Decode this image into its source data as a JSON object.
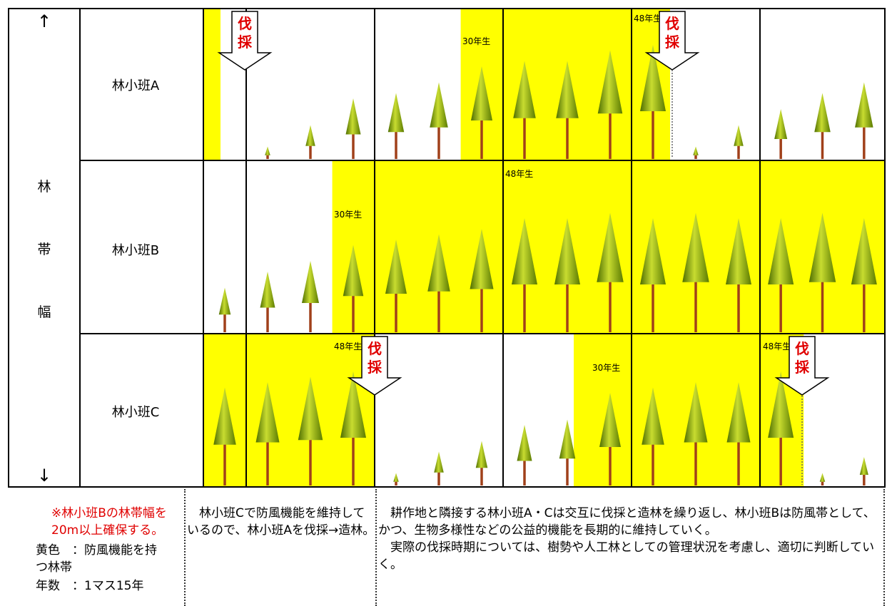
{
  "labels": {
    "arrow_up": "↑",
    "arrow_down": "↓",
    "vertical_axis": [
      "林",
      "帯",
      "幅"
    ],
    "rows": [
      "林小班A",
      "林小班B",
      "林小班C"
    ],
    "year_48": "48年生",
    "year_30": "30年生",
    "cut": [
      "伐",
      "採"
    ]
  },
  "colors": {
    "highlight": "#ffff00",
    "cut_text": "#e00000",
    "tree_trunk": "#a0401a",
    "tree_top": "#c8dc30",
    "tree_base": "#4e6e00"
  },
  "cells": {
    "A": [
      {
        "yellow": false,
        "trees": [],
        "bands": [
          {
            "from": 0,
            "to": 0.4
          }
        ]
      },
      {
        "yellow": false,
        "trees": [
          0.05,
          0.25,
          0.5
        ]
      },
      {
        "yellow": false,
        "trees": [
          0.55,
          0.65,
          0.8
        ],
        "bands": [
          {
            "from": 0.67,
            "to": 1.0
          }
        ],
        "label": "30年生"
      },
      {
        "yellow": true,
        "trees": [
          0.85,
          0.85,
          0.95
        ]
      },
      {
        "yellow": false,
        "trees": [
          1.0,
          0.05,
          0.25
        ],
        "bands": [
          {
            "from": 0,
            "to": 0.3
          }
        ],
        "label": "48年生",
        "cut": true
      },
      {
        "yellow": false,
        "trees": [
          0.4,
          0.55,
          0.65
        ]
      }
    ],
    "B": [
      {
        "yellow": false,
        "trees": [
          0.35
        ]
      },
      {
        "yellow": false,
        "trees": [
          0.5,
          0.6,
          0.75
        ],
        "bands": [
          {
            "from": 0.67,
            "to": 1.0
          }
        ],
        "label": "30年生"
      },
      {
        "yellow": true,
        "trees": [
          0.8,
          0.85,
          0.9
        ]
      },
      {
        "yellow": true,
        "trees": [
          1.0,
          1.0,
          1.05
        ],
        "label": "48年生"
      },
      {
        "yellow": true,
        "trees": [
          1.0,
          1.05,
          1.0
        ]
      },
      {
        "yellow": true,
        "trees": [
          1.0,
          1.05,
          1.0
        ]
      }
    ],
    "C": [
      {
        "yellow": true,
        "trees": [
          0.85
        ]
      },
      {
        "yellow": true,
        "trees": [
          0.9,
          0.95,
          1.0
        ],
        "label": "48年生",
        "cut": true
      },
      {
        "yellow": false,
        "trees": [
          0.05,
          0.25,
          0.35
        ]
      },
      {
        "yellow": false,
        "trees": [
          0.5,
          0.55,
          0.8
        ],
        "bands": [
          {
            "from": 0.55,
            "to": 1.0
          }
        ],
        "label": "30年生"
      },
      {
        "yellow": true,
        "trees": [
          0.85,
          0.9,
          0.9
        ]
      },
      {
        "yellow": false,
        "trees": [
          1.0,
          0.05,
          0.2
        ],
        "bands": [
          {
            "from": 0,
            "to": 0.35
          }
        ],
        "label": "48年生",
        "cut": true
      }
    ]
  },
  "notes": {
    "note1": "※林小班Bの林帯幅を　20m以上確保する。",
    "legend1": "黄色　：防風機能を持　　　つ林帯",
    "legend2": "年数　：1マス15年",
    "mid": "　林小班Cで防風機能を維持しているので、林小班Aを伐採→造林。",
    "right": "　耕作地と隣接する林小班A・Cは交互に伐採と造林を繰り返し、林小班Bは防風帯として、かつ、生物多様性などの公益的機能を長期的に維持していく。\n　実際の伐採時期については、樹勢や人工林としての管理状況を考慮し、適切に判断していく。"
  }
}
